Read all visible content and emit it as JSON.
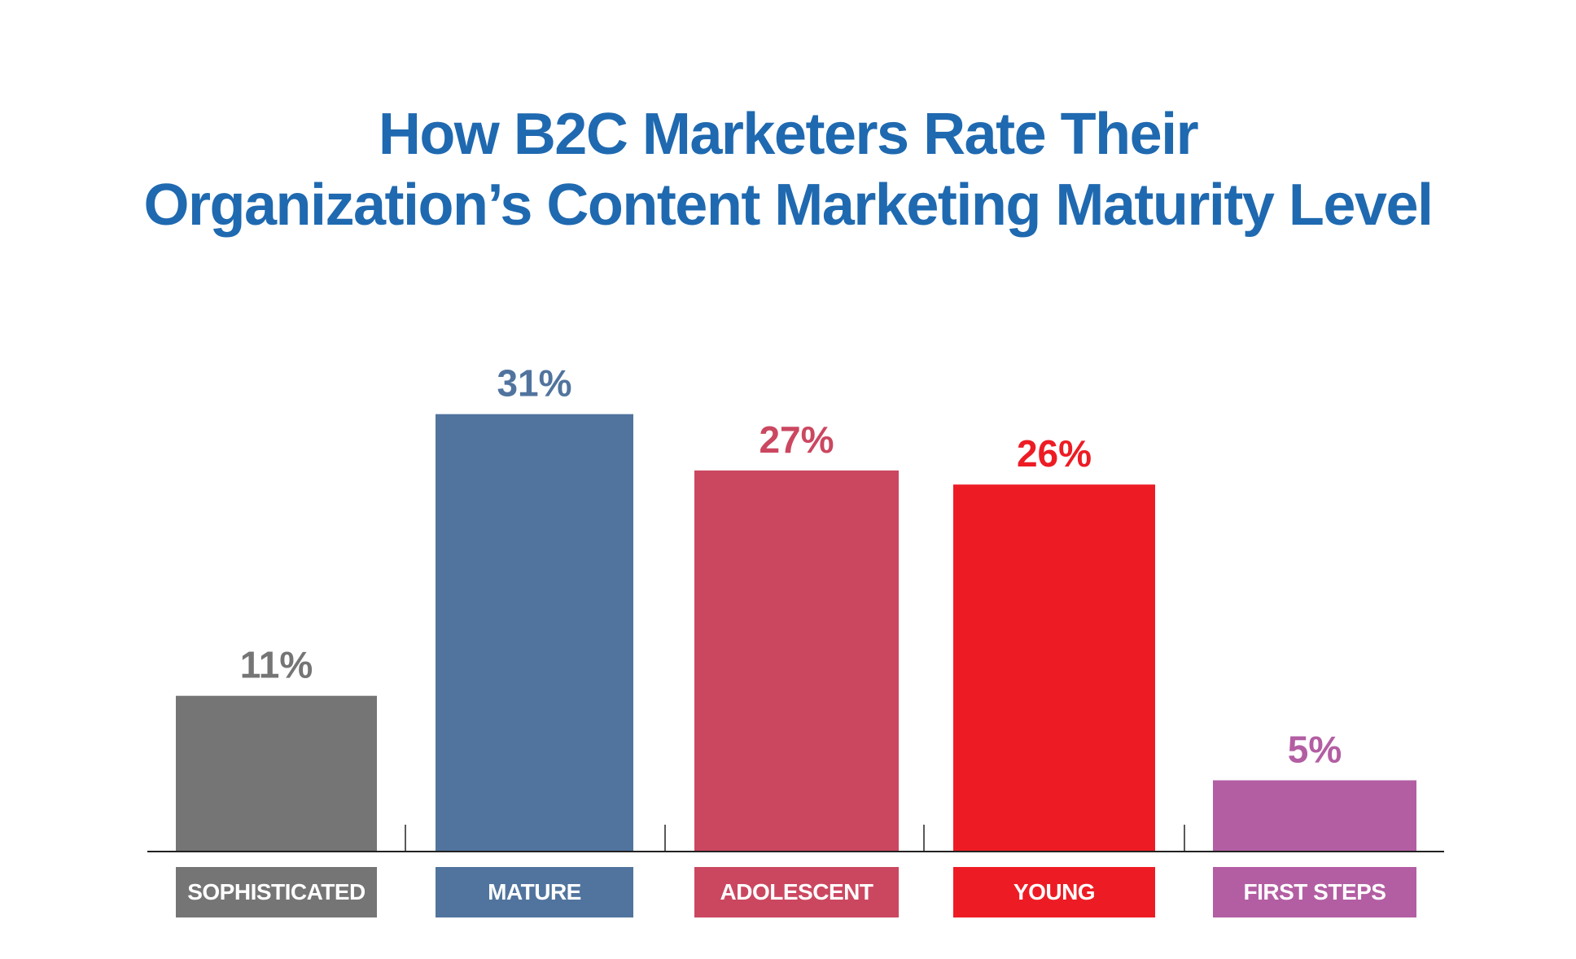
{
  "chart_data": {
    "type": "bar",
    "title": [
      "How B2C Marketers Rate Their",
      "Organization’s Content Marketing Maturity Level"
    ],
    "categories": [
      "SOPHISTICATED",
      "MATURE",
      "ADOLESCENT",
      "YOUNG",
      "FIRST STEPS"
    ],
    "values": [
      11,
      31,
      27,
      26,
      5
    ],
    "value_labels": [
      "11%",
      "31%",
      "27%",
      "26%",
      "5%"
    ],
    "colors": [
      "#757575",
      "#51749e",
      "#cb4760",
      "#ed1c24",
      "#b35ea3"
    ],
    "title_color": "#1f69b0",
    "xlabel": "",
    "ylabel": "",
    "ylim": [
      0,
      33
    ],
    "grid": false,
    "legend": "none"
  }
}
